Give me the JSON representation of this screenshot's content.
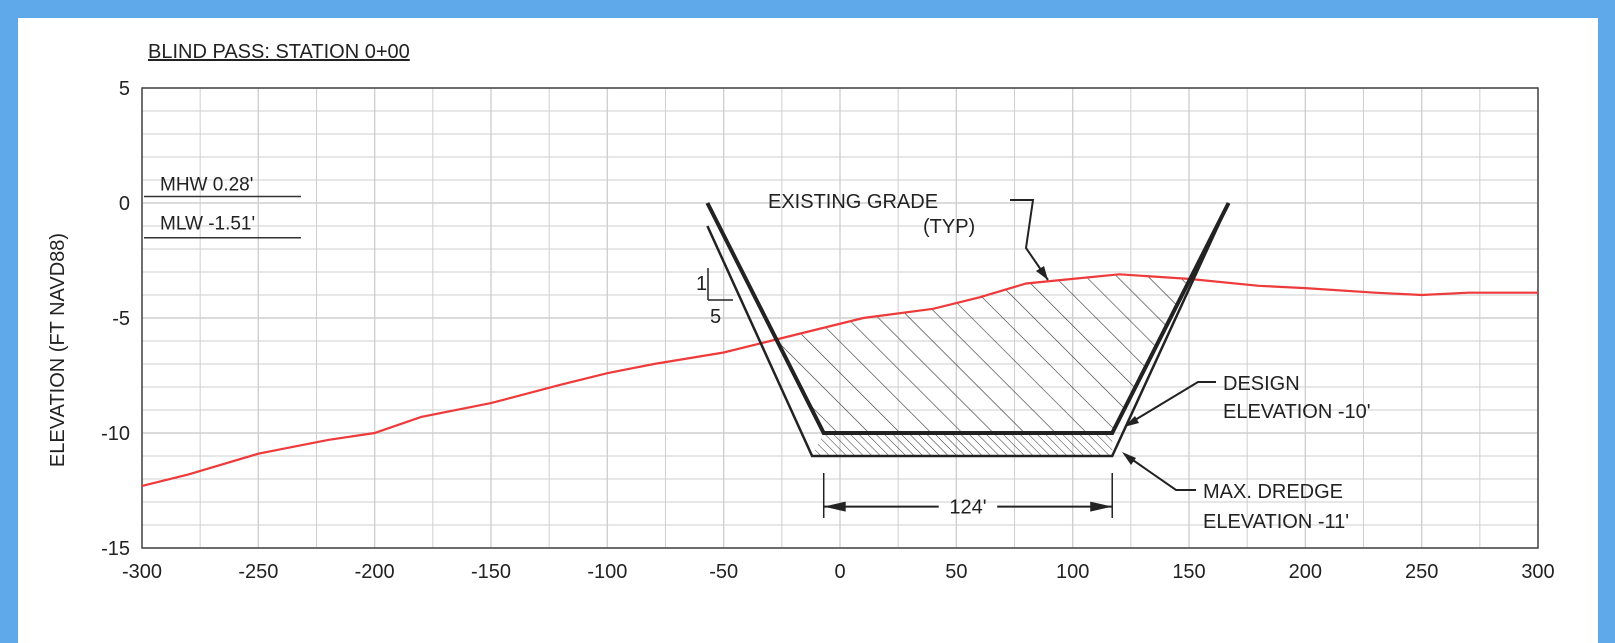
{
  "chart_data": {
    "type": "line",
    "title": "BLIND PASS:  STATION 0+00",
    "xlabel": "",
    "ylabel": "ELEVATION (FT NAVD88)",
    "xlim": [
      -300,
      300
    ],
    "ylim": [
      -15,
      5
    ],
    "xticks": [
      -300,
      -250,
      -200,
      -150,
      -100,
      -50,
      0,
      50,
      100,
      150,
      200,
      250,
      300
    ],
    "yticks": [
      5,
      0,
      -5,
      -10,
      -15
    ],
    "grid": true,
    "colors": {
      "existing_grade": "#ee3a3a",
      "design": "#222222",
      "grid": "#cfcfcf"
    },
    "series": [
      {
        "name": "EXISTING GRADE",
        "x": [
          -300,
          -280,
          -250,
          -220,
          -200,
          -180,
          -150,
          -120,
          -100,
          -80,
          -50,
          -30,
          -10,
          10,
          40,
          60,
          80,
          100,
          120,
          150,
          180,
          200,
          230,
          250,
          270,
          300
        ],
        "y": [
          -12.3,
          -11.8,
          -10.9,
          -10.3,
          -10.0,
          -9.3,
          -8.7,
          -7.9,
          -7.4,
          -7.0,
          -6.5,
          -6.0,
          -5.5,
          -5.0,
          -4.6,
          -4.1,
          -3.5,
          -3.3,
          -3.1,
          -3.3,
          -3.6,
          -3.7,
          -3.9,
          -4.0,
          -3.9,
          -3.9
        ]
      },
      {
        "name": "DESIGN",
        "x": [
          -57,
          -7,
          117,
          167
        ],
        "y": [
          0,
          -10,
          -10,
          0
        ]
      },
      {
        "name": "MAX. DREDGE",
        "x": [
          -57,
          -12,
          117,
          167
        ],
        "y": [
          -1,
          -11,
          -11,
          0
        ]
      }
    ],
    "annotations": {
      "mhw": "MHW 0.28'",
      "mlw": "MLW -1.51'",
      "existing_grade": [
        "EXISTING GRADE",
        "(TYP)"
      ],
      "design_elevation": [
        "DESIGN",
        "ELEVATION -10'"
      ],
      "max_dredge": [
        "MAX. DREDGE",
        "ELEVATION -11'"
      ],
      "width": "124'",
      "slope_rise": "1",
      "slope_run": "5"
    },
    "dimension": {
      "from": -7,
      "to": 117,
      "y": -13.2
    },
    "mhw_value": 0.28,
    "mlw_value": -1.51
  }
}
